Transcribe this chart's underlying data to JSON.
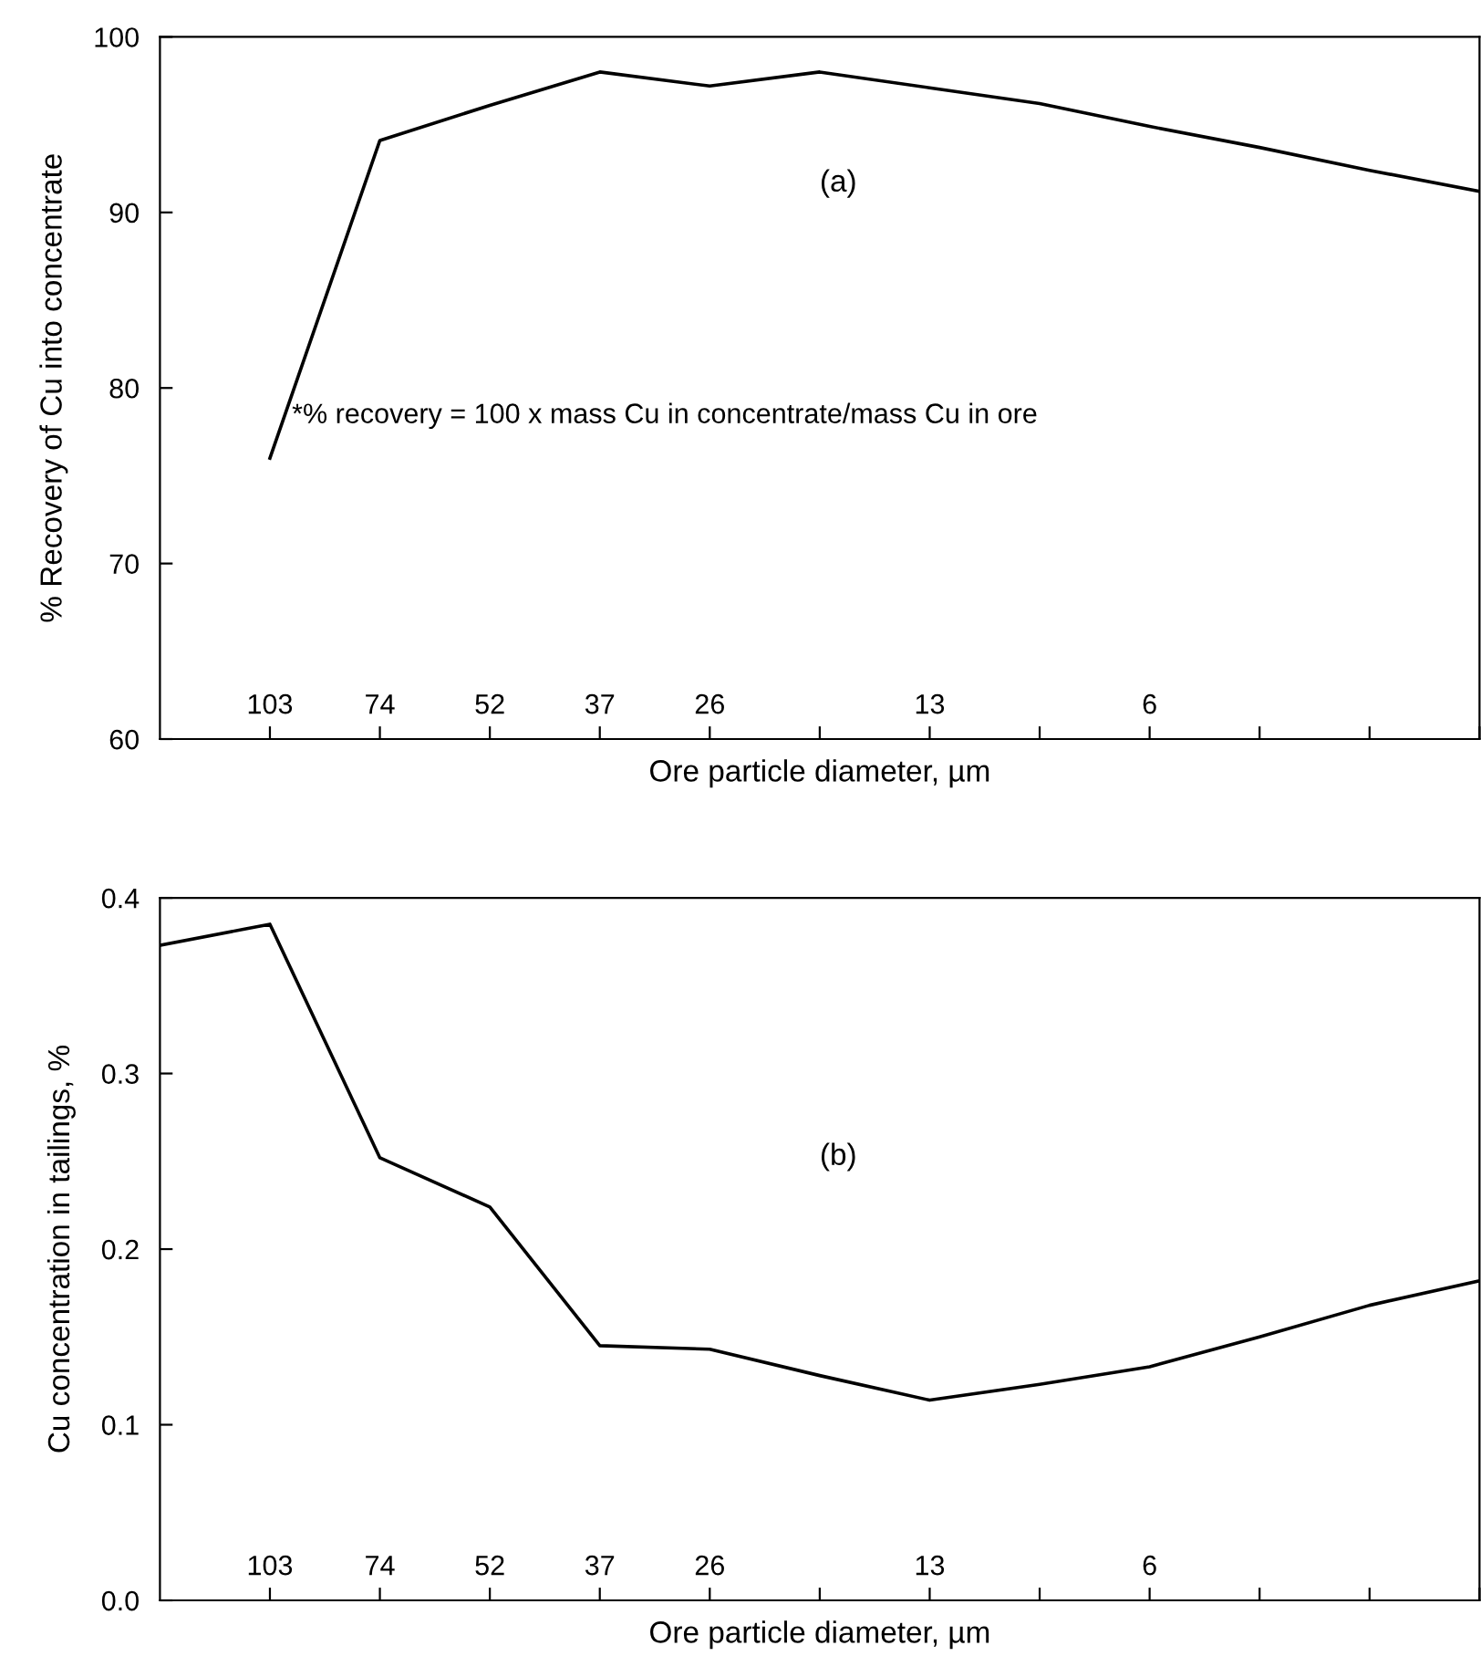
{
  "chart_data": [
    {
      "type": "line",
      "categories": [
        null,
        "103",
        "74",
        "52",
        "37",
        "26",
        null,
        "13",
        null,
        "6",
        null,
        null,
        null
      ],
      "series": [
        {
          "color": "#000000",
          "values": [
            null,
            76,
            94.1,
            96.1,
            98.0,
            97.2,
            98.0,
            97.1,
            96.2,
            94.9,
            93.7,
            92.4,
            91.2
          ]
        }
      ],
      "ylabel": "% Recovery of Cu into concentrate",
      "xlabel": "Ore particle diameter, µm",
      "ylim": [
        60,
        100
      ],
      "yticks": [
        60,
        70,
        80,
        90,
        100
      ],
      "grid": false,
      "legend": false,
      "marker": "none",
      "line_style": "solid",
      "annotations": [
        "(a)",
        "*% recovery = 100 x mass Cu in concentrate/mass Cu in ore"
      ]
    },
    {
      "type": "line",
      "categories": [
        null,
        "103",
        "74",
        "52",
        "37",
        "26",
        null,
        "13",
        null,
        "6",
        null,
        null,
        null
      ],
      "series": [
        {
          "color": "#000000",
          "values": [
            0.373,
            0.385,
            0.252,
            0.224,
            0.145,
            0.143,
            0.128,
            0.114,
            0.123,
            0.133,
            0.15,
            0.168,
            0.182
          ]
        }
      ],
      "ylabel": "Cu concentration in tailings, %",
      "xlabel": "Ore particle diameter, µm",
      "ylim": [
        0.0,
        0.4
      ],
      "yticks": [
        {
          "value": 0.0,
          "label": "0.0"
        },
        0.1,
        0.2,
        0.3,
        0.4
      ],
      "grid": false,
      "legend": false,
      "marker": "none",
      "line_style": "solid",
      "annotations": [
        "(b)"
      ]
    }
  ]
}
